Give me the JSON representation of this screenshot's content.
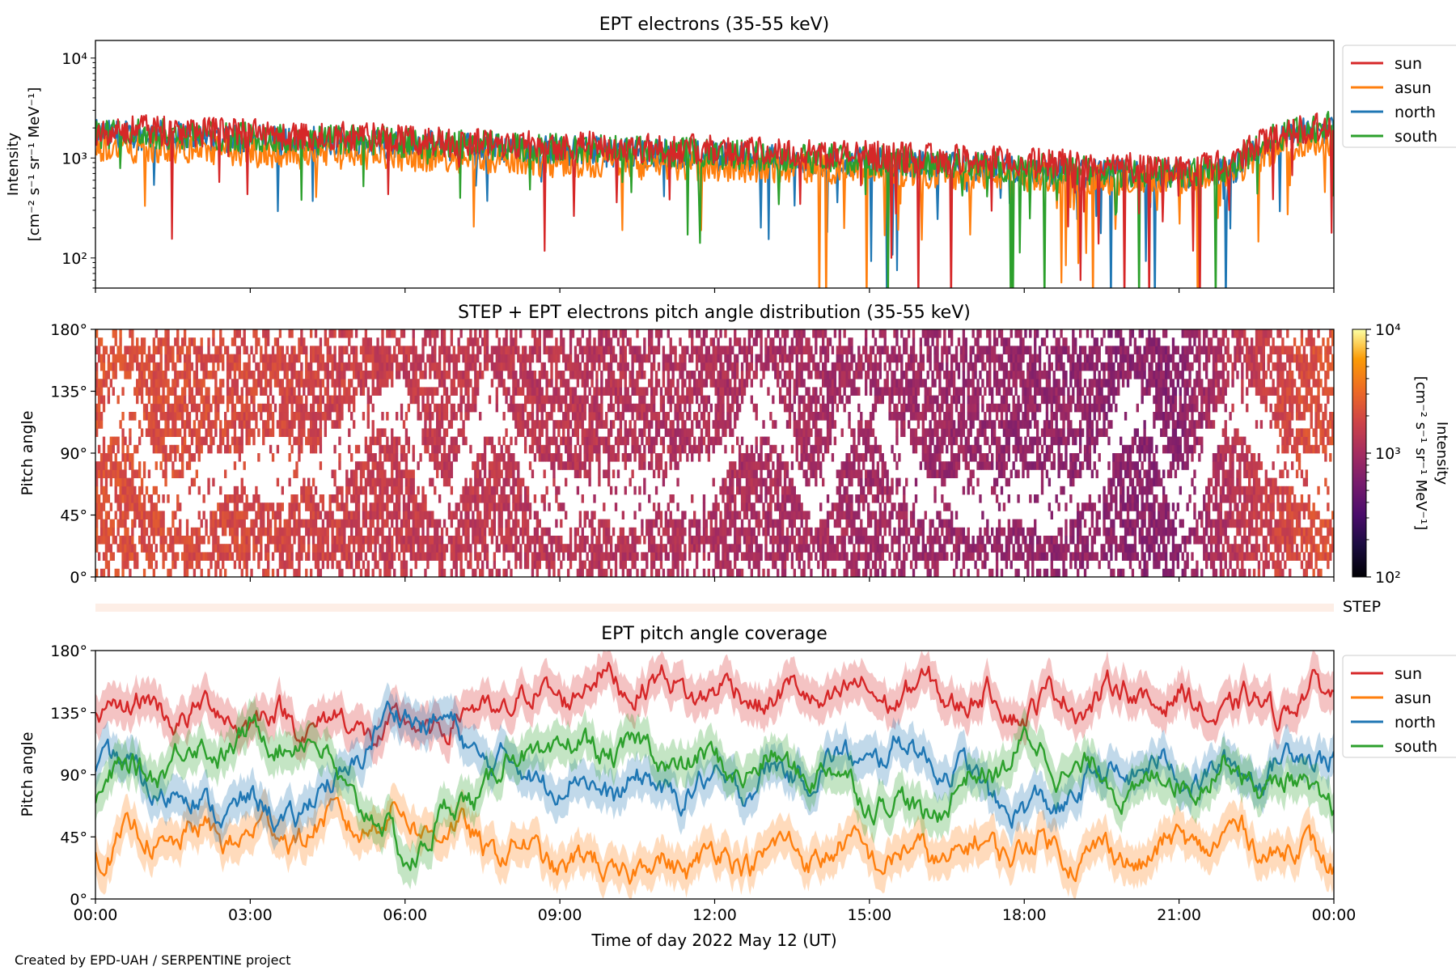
{
  "figure": {
    "footer": "Created by EPD-UAH / SERPENTINE project",
    "xlabel": "Time of day 2022 May 12 (UT)",
    "x_ticks": [
      "00:00",
      "03:00",
      "06:00",
      "09:00",
      "12:00",
      "15:00",
      "18:00",
      "21:00",
      "00:00"
    ],
    "series_colors": {
      "sun": "#d62728",
      "asun": "#ff7f0e",
      "north": "#1f77b4",
      "south": "#2ca02c"
    }
  },
  "chart_data": [
    {
      "id": "intensity",
      "type": "line",
      "title": "EPT electrons (35-55 keV)",
      "ylabel_line1": "Intensity",
      "ylabel_line2": "[cm⁻² s⁻¹ sr⁻¹ MeV⁻¹]",
      "yscale": "log",
      "ylim": [
        50,
        15000
      ],
      "y_ticks": [
        "10²",
        "10³",
        "10⁴"
      ],
      "y_tick_values": [
        100,
        1000,
        10000
      ],
      "xlim_hours": [
        0,
        24
      ],
      "legend": [
        "sun",
        "asun",
        "north",
        "south"
      ],
      "series": [
        {
          "name": "sun",
          "x_hours": [
            0,
            1,
            2,
            3,
            4,
            5,
            6,
            7,
            8,
            9,
            10,
            11,
            12,
            13,
            14,
            15,
            16,
            17,
            18,
            19,
            20,
            21,
            22,
            23,
            24
          ],
          "values": [
            1900,
            1900,
            1850,
            1750,
            1600,
            1700,
            1500,
            1450,
            1400,
            1350,
            1300,
            1250,
            1200,
            1150,
            1100,
            1050,
            1000,
            950,
            900,
            850,
            800,
            800,
            850,
            1800,
            2200
          ]
        },
        {
          "name": "asun",
          "x_hours": [
            0,
            1,
            2,
            3,
            4,
            5,
            6,
            7,
            8,
            9,
            10,
            11,
            12,
            13,
            14,
            15,
            16,
            17,
            18,
            19,
            20,
            21,
            22,
            23,
            24
          ],
          "values": [
            1300,
            1250,
            1200,
            1150,
            1100,
            1100,
            1050,
            1000,
            950,
            900,
            880,
            850,
            820,
            800,
            780,
            750,
            700,
            680,
            650,
            620,
            600,
            600,
            650,
            1300,
            1500
          ]
        },
        {
          "name": "north",
          "x_hours": [
            0,
            1,
            2,
            3,
            4,
            5,
            6,
            7,
            8,
            9,
            10,
            11,
            12,
            13,
            14,
            15,
            16,
            17,
            18,
            19,
            20,
            21,
            22,
            23,
            24
          ],
          "values": [
            1700,
            1700,
            1650,
            1550,
            1450,
            1500,
            1350,
            1300,
            1250,
            1200,
            1150,
            1100,
            1050,
            1000,
            950,
            900,
            850,
            800,
            750,
            700,
            680,
            680,
            720,
            1600,
            2000
          ]
        },
        {
          "name": "south",
          "x_hours": [
            0,
            1,
            2,
            3,
            4,
            5,
            6,
            7,
            8,
            9,
            10,
            11,
            12,
            13,
            14,
            15,
            16,
            17,
            18,
            19,
            20,
            21,
            22,
            23,
            24
          ],
          "values": [
            1750,
            1750,
            1700,
            1600,
            1500,
            1550,
            1400,
            1350,
            1300,
            1250,
            1200,
            1150,
            1100,
            1050,
            1000,
            950,
            900,
            850,
            800,
            750,
            720,
            720,
            760,
            1700,
            2100
          ]
        }
      ]
    },
    {
      "id": "pad",
      "type": "heatmap",
      "title": "STEP + EPT electrons pitch angle distribution (35-55 keV)",
      "ylabel": "Pitch angle",
      "ylim": [
        0,
        180
      ],
      "y_ticks": [
        "0°",
        "45°",
        "90°",
        "135°",
        "180°"
      ],
      "y_tick_values": [
        0,
        45,
        90,
        135,
        180
      ],
      "xlim_hours": [
        0,
        24
      ],
      "colorbar": {
        "label_line1": "Intensity",
        "label_line2": "[cm⁻² s⁻¹ sr⁻¹ MeV⁻¹]",
        "scale": "log",
        "range": [
          100,
          10000
        ],
        "ticks": [
          "10²",
          "10³",
          "10⁴"
        ],
        "tick_values": [
          100,
          1000,
          10000
        ],
        "colormap": "inferno"
      },
      "intensity_trend_hours": [
        0,
        3,
        6,
        9,
        12,
        15,
        18,
        21,
        23,
        24
      ],
      "intensity_trend_values": [
        2200,
        1900,
        1500,
        1300,
        1100,
        950,
        800,
        700,
        1800,
        2300
      ]
    },
    {
      "id": "step_strip",
      "type": "table",
      "label": "STEP",
      "color": "#fdeee6"
    },
    {
      "id": "coverage",
      "type": "line",
      "title": "EPT pitch angle coverage",
      "ylabel": "Pitch angle",
      "ylim": [
        0,
        180
      ],
      "y_ticks": [
        "0°",
        "45°",
        "90°",
        "135°",
        "180°"
      ],
      "y_tick_values": [
        0,
        45,
        90,
        135,
        180
      ],
      "xlim_hours": [
        0,
        24
      ],
      "legend": [
        "sun",
        "asun",
        "north",
        "south"
      ],
      "series": [
        {
          "name": "sun",
          "x_hours": [
            0,
            2,
            4,
            6,
            8,
            10,
            12,
            14,
            16,
            18,
            20,
            22,
            24
          ],
          "values": [
            140,
            135,
            130,
            120,
            140,
            160,
            150,
            145,
            150,
            140,
            150,
            135,
            150
          ]
        },
        {
          "name": "asun",
          "x_hours": [
            0,
            2,
            4,
            6,
            8,
            10,
            12,
            14,
            16,
            18,
            20,
            22,
            24
          ],
          "values": [
            40,
            45,
            50,
            60,
            35,
            20,
            30,
            35,
            30,
            40,
            30,
            45,
            30
          ]
        },
        {
          "name": "north",
          "x_hours": [
            0,
            2,
            4,
            6,
            8,
            10,
            12,
            14,
            16,
            18,
            20,
            22,
            24
          ],
          "values": [
            100,
            70,
            60,
            140,
            95,
            80,
            80,
            95,
            110,
            60,
            95,
            90,
            110
          ]
        },
        {
          "name": "south",
          "x_hours": [
            0,
            2,
            4,
            6,
            8,
            10,
            12,
            14,
            16,
            18,
            20,
            22,
            24
          ],
          "values": [
            80,
            110,
            120,
            30,
            100,
            110,
            95,
            95,
            60,
            110,
            80,
            95,
            70
          ]
        }
      ]
    }
  ]
}
